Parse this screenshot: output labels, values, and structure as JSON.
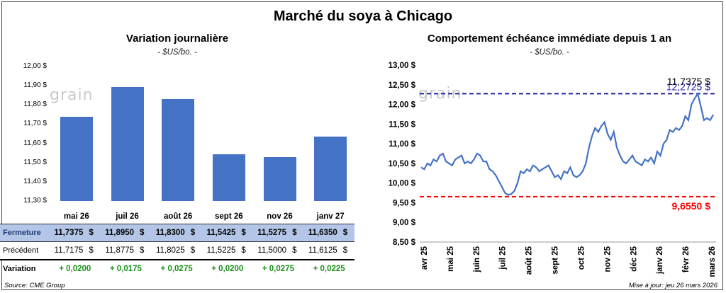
{
  "title": "Marché du soya à Chicago",
  "watermark": "grain",
  "left_panel": {
    "title": "Variation journalière",
    "unit": "- $US/bo. -"
  },
  "right_panel": {
    "title": "Comportement échéance immédiate depuis 1 an",
    "unit": "- $US/bo. -"
  },
  "table": {
    "rows": [
      {
        "label": "Fermeture",
        "values": [
          "11,7375",
          "11,8950",
          "11,8300",
          "11,5425",
          "11,5275",
          "11,6350"
        ],
        "currency": "$"
      },
      {
        "label": "Précédent",
        "values": [
          "11,7175",
          "11,8775",
          "11,8025",
          "11,5225",
          "11,5000",
          "11,6125"
        ],
        "currency": "$"
      },
      {
        "label": "Variation",
        "values": [
          "+ 0,0200",
          "+ 0,0175",
          "+ 0,0275",
          "+ 0,0200",
          "+ 0,0275",
          "+ 0,0225"
        ]
      }
    ]
  },
  "footer": {
    "source": "Source: CME Group",
    "updated": "Mise à jour: jeu 26 mars 2026"
  },
  "colors": {
    "bar": "#4472c4",
    "line": "#4472c4",
    "high_line": "#1f1fa0",
    "low_line": "#ff0000",
    "variation": "#1a8f1a"
  },
  "chart_data": [
    {
      "type": "bar",
      "title": "Variation journalière",
      "categories": [
        "mai 26",
        "juil 26",
        "août 26",
        "sept 26",
        "nov 26",
        "janv 27"
      ],
      "values": [
        11.7375,
        11.895,
        11.83,
        11.5425,
        11.5275,
        11.635
      ],
      "ylim": [
        11.3,
        12.0
      ],
      "yticks": [
        "12,00 $",
        "11,90 $",
        "11,80 $",
        "11,70 $",
        "11,60 $",
        "11,50 $",
        "11,40 $",
        "11,30 $"
      ],
      "grid": false
    },
    {
      "type": "line",
      "title": "Comportement échéance immédiate depuis 1 an",
      "x_labels": [
        "avr 25",
        "mai 25",
        "juin 25",
        "juil 25",
        "août 25",
        "sept 25",
        "oct 25",
        "nov 25",
        "déc 25",
        "janv 26",
        "févr 26",
        "mars 26"
      ],
      "ylim": [
        8.5,
        13.0
      ],
      "yticks": [
        "13,00 $",
        "12,50 $",
        "12,00 $",
        "11,50 $",
        "11,00 $",
        "10,50 $",
        "10,00 $",
        "9,50 $",
        "9,00 $",
        "8,50 $"
      ],
      "values": [
        10.4,
        10.35,
        10.5,
        10.45,
        10.6,
        10.55,
        10.7,
        10.75,
        10.55,
        10.5,
        10.45,
        10.6,
        10.65,
        10.7,
        10.5,
        10.55,
        10.5,
        10.6,
        10.75,
        10.7,
        10.55,
        10.55,
        10.35,
        10.3,
        10.2,
        10.05,
        9.9,
        9.75,
        9.7,
        9.72,
        9.8,
        10.0,
        10.3,
        10.25,
        10.35,
        10.3,
        10.45,
        10.4,
        10.3,
        10.35,
        10.4,
        10.45,
        10.3,
        10.15,
        10.2,
        10.1,
        10.3,
        10.25,
        10.4,
        10.2,
        10.15,
        10.2,
        10.3,
        10.5,
        10.9,
        11.2,
        11.4,
        11.3,
        11.45,
        11.55,
        11.25,
        11.1,
        11.3,
        10.9,
        10.7,
        10.55,
        10.5,
        10.6,
        10.7,
        10.55,
        10.5,
        10.45,
        10.6,
        10.55,
        10.65,
        10.5,
        10.8,
        10.7,
        11.0,
        11.1,
        11.35,
        11.3,
        11.4,
        11.35,
        11.45,
        11.7,
        11.6,
        12.0,
        12.15,
        12.27,
        11.95,
        11.6,
        11.65,
        11.6,
        11.7375
      ],
      "annotations": [
        {
          "label": "11,7375 $",
          "value": 11.7375,
          "kind": "last"
        },
        {
          "label": "12,2725 $",
          "value": 12.2725,
          "kind": "high"
        },
        {
          "label": "9,6550 $",
          "value": 9.655,
          "kind": "low"
        }
      ],
      "grid": false
    }
  ]
}
